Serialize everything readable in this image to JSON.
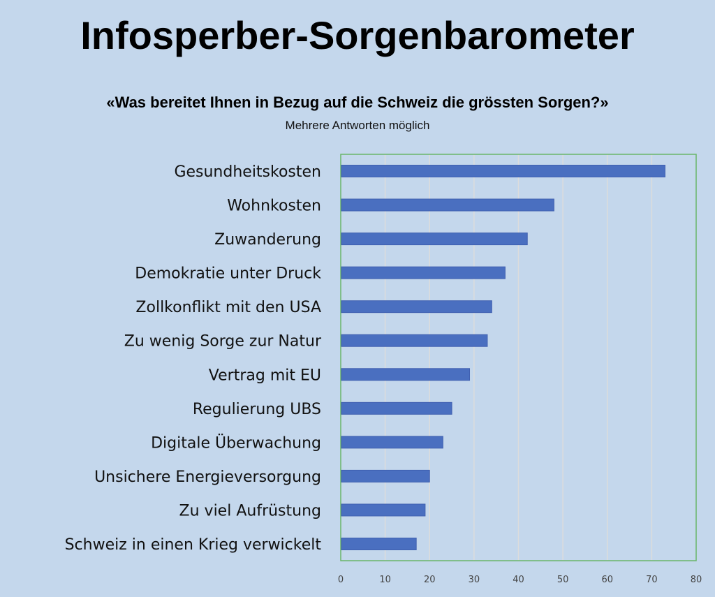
{
  "chart_data": {
    "type": "bar",
    "orientation": "horizontal",
    "title": "Infosperber-Sorgenbarometer",
    "subtitle": "«Was bereitet Ihnen in Bezug auf die Schweiz die grössten Sorgen?»",
    "note": "Mehrere Antworten möglich",
    "categories": [
      "Gesundheitskosten",
      "Wohnkosten",
      "Zuwanderung",
      "Demokratie unter Druck",
      "Zollkonflikt mit den USA",
      "Zu wenig Sorge zur Natur",
      "Vertrag mit EU",
      "Regulierung UBS",
      "Digitale Überwachung",
      "Unsichere Energieversorgung",
      "Zu viel Aufrüstung",
      "Schweiz in einen Krieg verwickelt"
    ],
    "values": [
      73,
      48,
      42,
      37,
      34,
      33,
      29,
      25,
      23,
      20,
      19,
      17
    ],
    "xlim": [
      0,
      80
    ],
    "xticks": [
      "0",
      "10",
      "20",
      "30",
      "40",
      "50",
      "60",
      "70",
      "80"
    ],
    "grid": true,
    "colors": {
      "bar": "#4a6fc0",
      "background": "#c4d7ec",
      "plot_border": "#6ab56a",
      "grid": "#dcdcdc"
    }
  }
}
